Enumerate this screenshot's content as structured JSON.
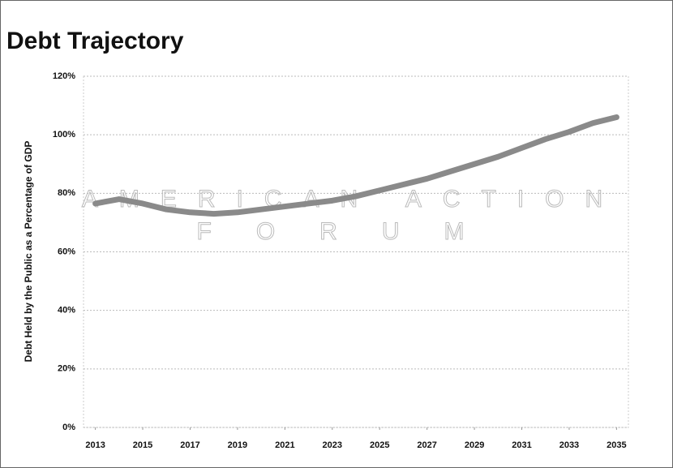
{
  "chart_data": {
    "type": "line",
    "title": "Debt Trajectory",
    "y_label": "Debt Held by the Public as a Percentage of GDP",
    "watermark": [
      "AMERICAN ACTION",
      "FORUM"
    ],
    "x": [
      2013,
      2014,
      2015,
      2016,
      2017,
      2018,
      2019,
      2020,
      2021,
      2022,
      2023,
      2024,
      2025,
      2026,
      2027,
      2028,
      2029,
      2030,
      2031,
      2032,
      2033,
      2034,
      2035
    ],
    "values": [
      76.5,
      78,
      76.5,
      74.5,
      73.5,
      73,
      73.5,
      74.5,
      75.5,
      76.5,
      77.5,
      79,
      81,
      83,
      85,
      87.5,
      90,
      92.5,
      95.5,
      98.5,
      101,
      104,
      106
    ],
    "color": "#8a8a8a",
    "xlim": [
      2012.5,
      2035.5
    ],
    "xticks": [
      2013,
      2015,
      2017,
      2019,
      2021,
      2023,
      2025,
      2027,
      2029,
      2031,
      2033,
      2035
    ],
    "ylim": [
      0,
      120
    ],
    "yticks": [
      {
        "value": 0,
        "label": "0%"
      },
      {
        "value": 20,
        "label": "20%"
      },
      {
        "value": 40,
        "label": "40%"
      },
      {
        "value": 60,
        "label": "60%"
      },
      {
        "value": 80,
        "label": "80%"
      },
      {
        "value": 100,
        "label": "100%"
      },
      {
        "value": 120,
        "label": "120%"
      }
    ],
    "grid": true
  }
}
